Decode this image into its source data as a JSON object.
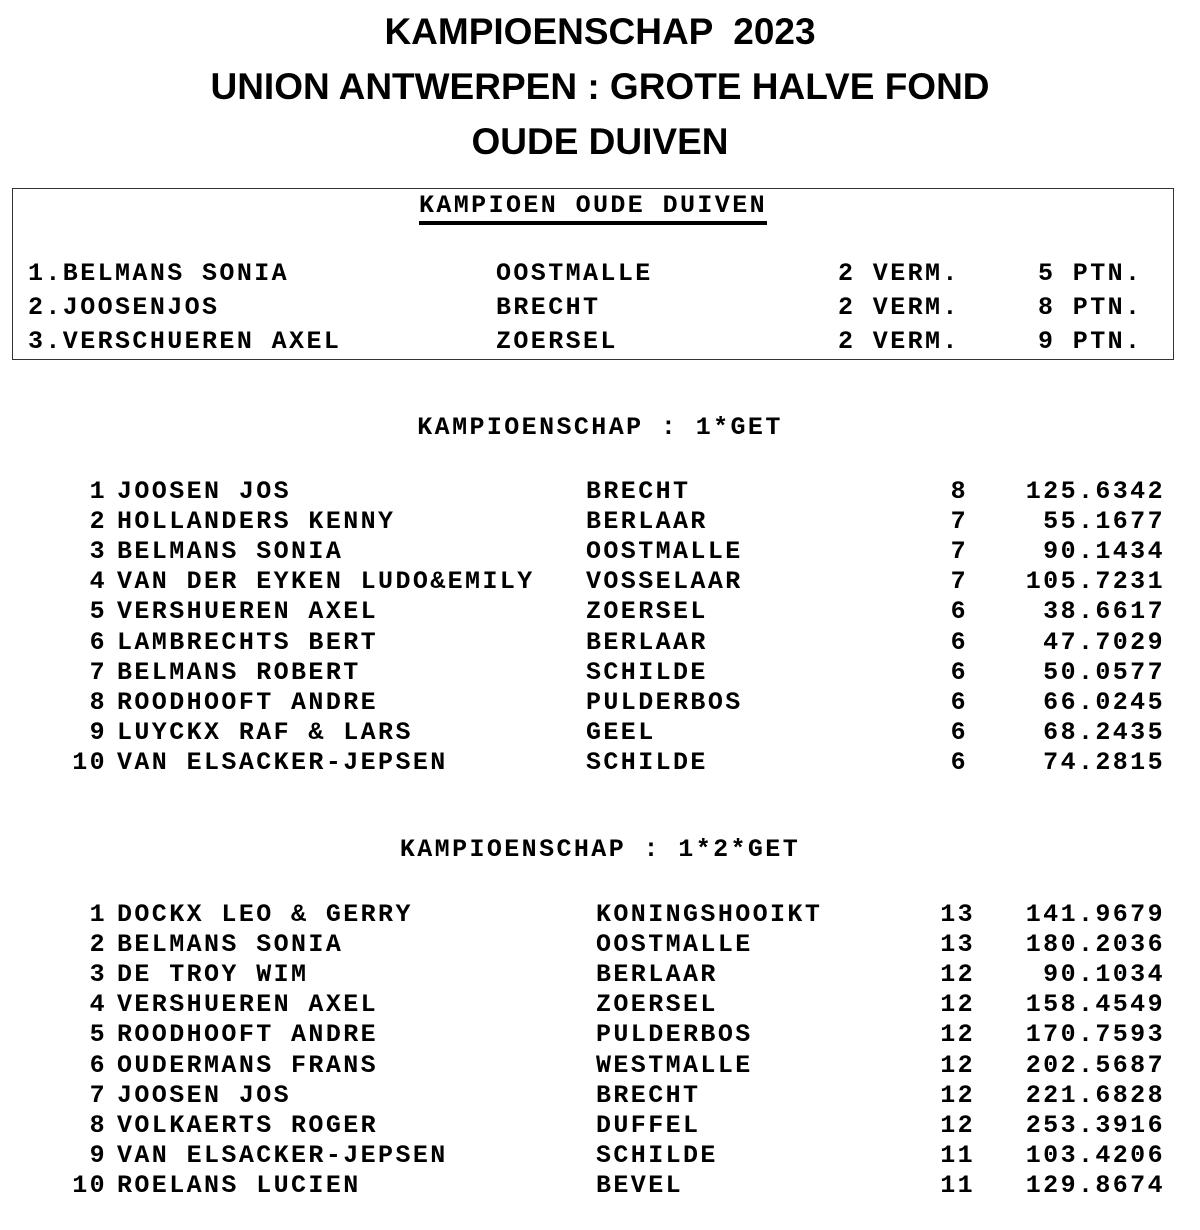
{
  "titles": [
    "KAMPIOENSCHAP  2023",
    "UNION ANTWERPEN : GROTE HALVE FOND",
    "OUDE DUIVEN"
  ],
  "champion_box": {
    "heading": "KAMPIOEN OUDE DUIVEN",
    "rows": [
      {
        "name": "1.BELMANS SONIA",
        "city": "OOSTMALLE",
        "verm": "2 VERM.",
        "ptn": "5 PTN."
      },
      {
        "name": "2.JOOSENJOS",
        "city": "BRECHT",
        "verm": "2 VERM.",
        "ptn": "8 PTN."
      },
      {
        "name": "3.VERSCHUEREN AXEL",
        "city": "ZOERSEL",
        "verm": "2 VERM.",
        "ptn": "9 PTN."
      }
    ]
  },
  "sections": [
    {
      "heading": "KAMPIOENSCHAP : 1*GET",
      "rows": [
        {
          "rank": "1",
          "name": "JOOSEN JOS",
          "city": "BRECHT",
          "count": "8",
          "value": "125.6342"
        },
        {
          "rank": "2",
          "name": "HOLLANDERS KENNY",
          "city": "BERLAAR",
          "count": "7",
          "value": "55.1677"
        },
        {
          "rank": "3",
          "name": "BELMANS SONIA",
          "city": "OOSTMALLE",
          "count": "7",
          "value": "90.1434"
        },
        {
          "rank": "4",
          "name": "VAN DER EYKEN LUDO&EMILY",
          "city": "VOSSELAAR",
          "count": "7",
          "value": "105.7231"
        },
        {
          "rank": "5",
          "name": "VERSHUEREN AXEL",
          "city": "ZOERSEL",
          "count": "6",
          "value": "38.6617"
        },
        {
          "rank": "6",
          "name": "LAMBRECHTS BERT",
          "city": "BERLAAR",
          "count": "6",
          "value": "47.7029"
        },
        {
          "rank": "7",
          "name": "BELMANS ROBERT",
          "city": "SCHILDE",
          "count": "6",
          "value": "50.0577"
        },
        {
          "rank": "8",
          "name": "ROODHOOFT ANDRE",
          "city": "PULDERBOS",
          "count": "6",
          "value": "66.0245"
        },
        {
          "rank": "9",
          "name": "LUYCKX RAF & LARS",
          "city": "GEEL",
          "count": "6",
          "value": "68.2435"
        },
        {
          "rank": "10",
          "name": "VAN ELSACKER-JEPSEN",
          "city": "SCHILDE",
          "count": "6",
          "value": "74.2815"
        }
      ]
    },
    {
      "heading": "KAMPIOENSCHAP : 1*2*GET",
      "rows": [
        {
          "rank": "1",
          "name": "DOCKX LEO & GERRY",
          "city": "KONINGSHOOIKT",
          "count": "13",
          "value": "141.9679"
        },
        {
          "rank": "2",
          "name": "BELMANS SONIA",
          "city": "OOSTMALLE",
          "count": "13",
          "value": "180.2036"
        },
        {
          "rank": "3",
          "name": "DE TROY WIM",
          "city": "BERLAAR",
          "count": "12",
          "value": "90.1034"
        },
        {
          "rank": "4",
          "name": "VERSHUEREN AXEL",
          "city": "ZOERSEL",
          "count": "12",
          "value": "158.4549"
        },
        {
          "rank": "5",
          "name": "ROODHOOFT ANDRE",
          "city": "PULDERBOS",
          "count": "12",
          "value": "170.7593"
        },
        {
          "rank": "6",
          "name": "OUDERMANS FRANS",
          "city": "WESTMALLE",
          "count": "12",
          "value": "202.5687"
        },
        {
          "rank": "7",
          "name": "JOOSEN JOS",
          "city": "BRECHT",
          "count": "12",
          "value": "221.6828"
        },
        {
          "rank": "8",
          "name": "VOLKAERTS ROGER",
          "city": "DUFFEL",
          "count": "12",
          "value": "253.3916"
        },
        {
          "rank": "9",
          "name": "VAN ELSACKER-JEPSEN",
          "city": "SCHILDE",
          "count": "11",
          "value": "103.4206"
        },
        {
          "rank": "10",
          "name": "ROELANS LUCIEN",
          "city": "BEVEL",
          "count": "11",
          "value": "129.8674"
        }
      ]
    }
  ]
}
